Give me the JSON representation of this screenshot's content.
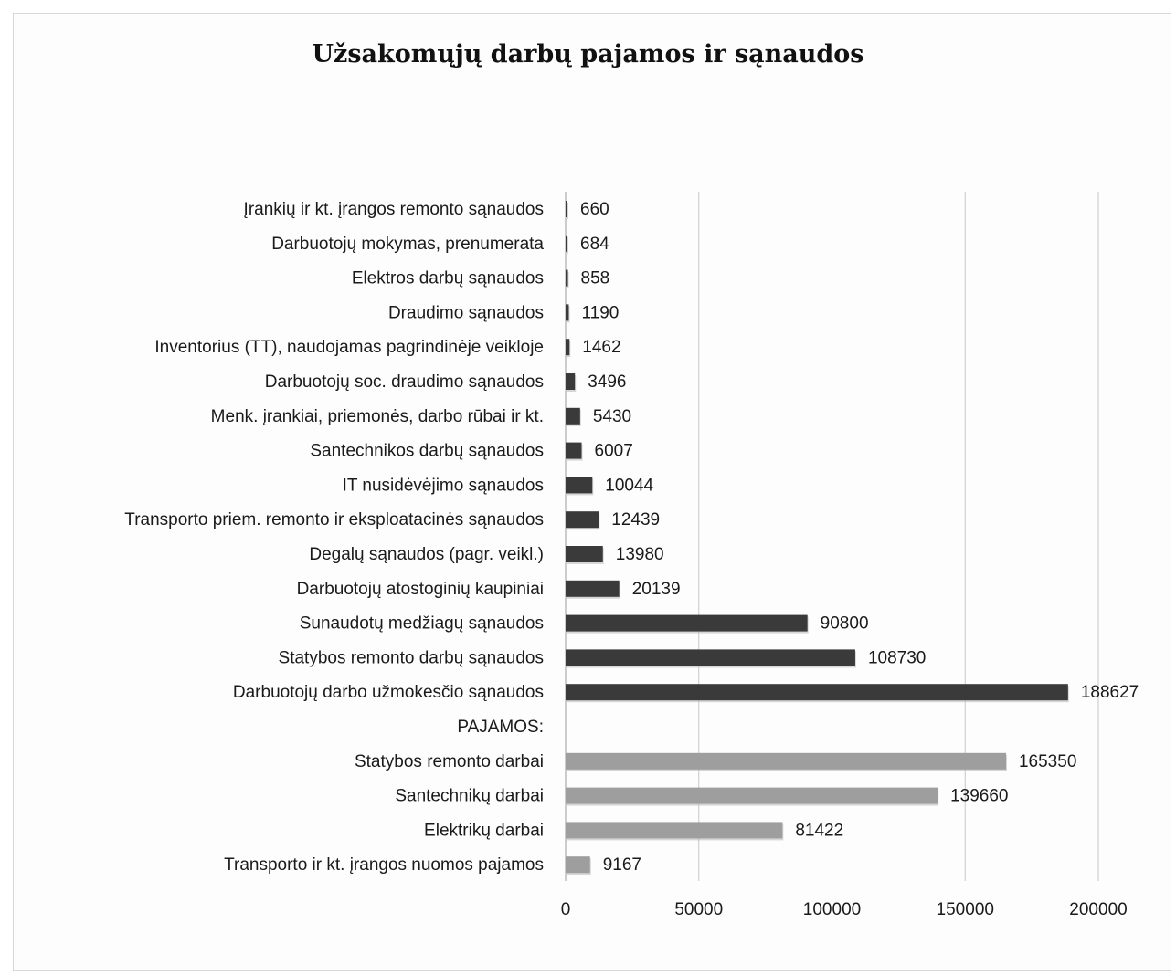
{
  "chart_data": {
    "type": "bar",
    "orientation": "horizontal",
    "title": "Užsakomųjų darbų pajamos ir sąnaudos",
    "xlabel": "",
    "ylabel": "",
    "xlim": [
      0,
      200000
    ],
    "x_ticks": [
      "0",
      "50000",
      "100000",
      "150000",
      "200000"
    ],
    "x_tick_values": [
      0,
      50000,
      100000,
      150000,
      200000
    ],
    "grid": "vertical gridlines",
    "legend": "none",
    "colors": {
      "expenses": "#3a3a3a",
      "income": "#9e9e9e"
    },
    "categories": [
      "Įrankių ir kt. įrangos remonto sąnaudos",
      "Darbuotojų mokymas, prenumerata",
      "Elektros darbų sąnaudos",
      "Draudimo sąnaudos",
      "Inventorius (TT), naudojamas pagrindinėje veikloje",
      "Darbuotojų soc. draudimo sąnaudos",
      "Menk. įrankiai, priemonės, darbo rūbai ir kt.",
      "Santechnikos darbų sąnaudos",
      "IT nusidėvėjimo sąnaudos",
      "Transporto priem. remonto ir eksploatacinės sąnaudos",
      "Degalų sąnaudos (pagr. veikl.)",
      "Darbuotojų atostoginių kaupiniai",
      "Sunaudotų medžiagų sąnaudos",
      "Statybos remonto darbų sąnaudos",
      "Darbuotojų darbo užmokesčio sąnaudos",
      "PAJAMOS:",
      "Statybos remonto darbai",
      "Santechnikų darbai",
      "Elektrikų darbai",
      "Transporto ir kt. įrangos nuomos pajamos"
    ],
    "values": [
      660,
      684,
      858,
      1190,
      1462,
      3496,
      5430,
      6007,
      10044,
      12439,
      13980,
      20139,
      90800,
      108730,
      188627,
      null,
      165350,
      139660,
      81422,
      9167
    ],
    "value_labels": [
      "660",
      "684",
      "858",
      "1190",
      "1462",
      "3496",
      "5430",
      "6007",
      "10044",
      "12439",
      "13980",
      "20139",
      "90800",
      "108730",
      "188627",
      "",
      "165350",
      "139660",
      "81422",
      "9167"
    ],
    "groups": [
      "expenses",
      "expenses",
      "expenses",
      "expenses",
      "expenses",
      "expenses",
      "expenses",
      "expenses",
      "expenses",
      "expenses",
      "expenses",
      "expenses",
      "expenses",
      "expenses",
      "expenses",
      "header",
      "income",
      "income",
      "income",
      "income"
    ]
  }
}
